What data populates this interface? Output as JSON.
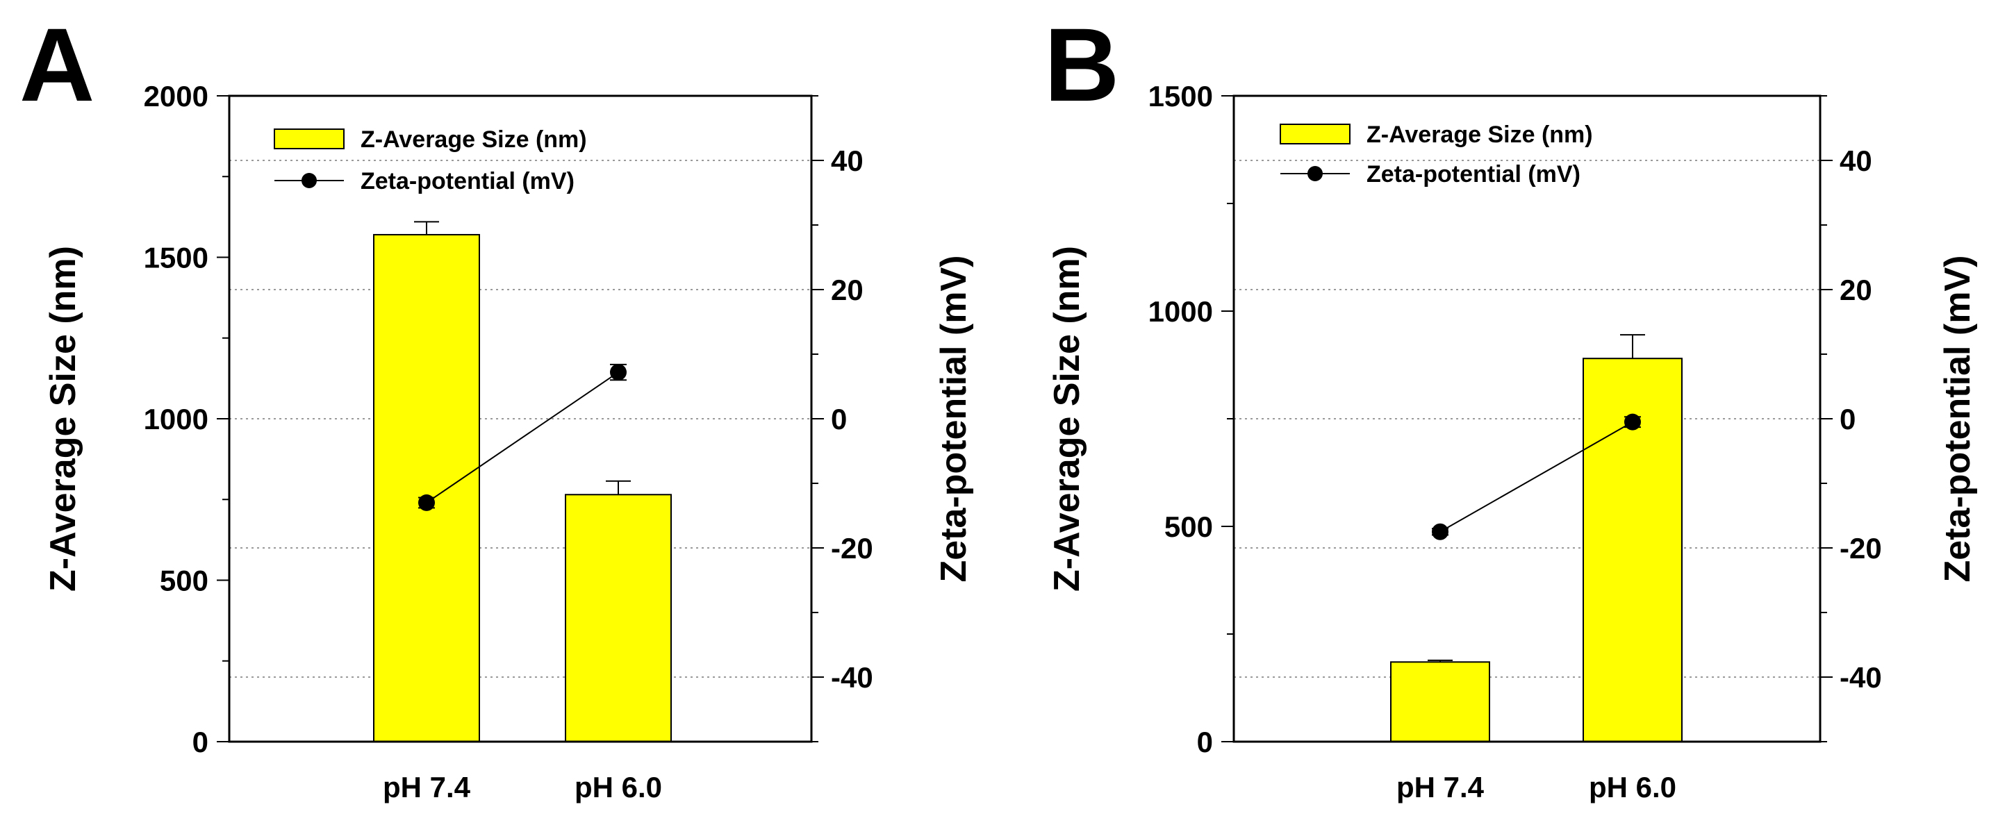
{
  "chart_data": [
    {
      "panel": "A",
      "type": "bar",
      "categories": [
        "pH 7.4",
        "pH 6.0"
      ],
      "series": [
        {
          "name": "Z-Average Size (nm)",
          "axis": "left",
          "type": "bar",
          "values": [
            1570,
            765
          ],
          "errors": [
            40,
            42
          ]
        },
        {
          "name": "Zeta-potential (mV)",
          "axis": "right",
          "type": "line",
          "values": [
            -13,
            7.2
          ],
          "errors": [
            0.8,
            1.2
          ]
        }
      ],
      "ylabel": "Z-Average Size (nm)",
      "y2label": "Zeta-potential (mV)",
      "ylim": [
        0,
        2000
      ],
      "y2lim": [
        -50,
        50
      ],
      "yticks": [
        0,
        500,
        1000,
        1500,
        2000
      ],
      "y2ticks": [
        -40,
        -20,
        0,
        20,
        40
      ],
      "legend": "top-left",
      "grid": "dotted at right-axis major ticks",
      "colors": {
        "bar": "#ffff00",
        "line": "#000000"
      }
    },
    {
      "panel": "B",
      "type": "bar",
      "categories": [
        "pH 7.4",
        "pH 6.0"
      ],
      "series": [
        {
          "name": "Z-Average Size (nm)",
          "axis": "left",
          "type": "bar",
          "values": [
            185,
            890
          ],
          "errors": [
            4,
            55
          ]
        },
        {
          "name": "Zeta-potential (mV)",
          "axis": "right",
          "type": "line",
          "values": [
            -17.5,
            -0.5
          ],
          "errors": [
            0.5,
            0.8
          ]
        }
      ],
      "ylabel": "Z-Average Size (nm)",
      "y2label": "Zeta-potential (mV)",
      "ylim": [
        0,
        1500
      ],
      "y2lim": [
        -50,
        50
      ],
      "yticks": [
        0,
        500,
        1000,
        1500
      ],
      "y2ticks": [
        -40,
        -20,
        0,
        20,
        40
      ],
      "legend": "top-left",
      "grid": "dotted at right-axis major ticks",
      "colors": {
        "bar": "#ffff00",
        "line": "#000000"
      }
    }
  ]
}
